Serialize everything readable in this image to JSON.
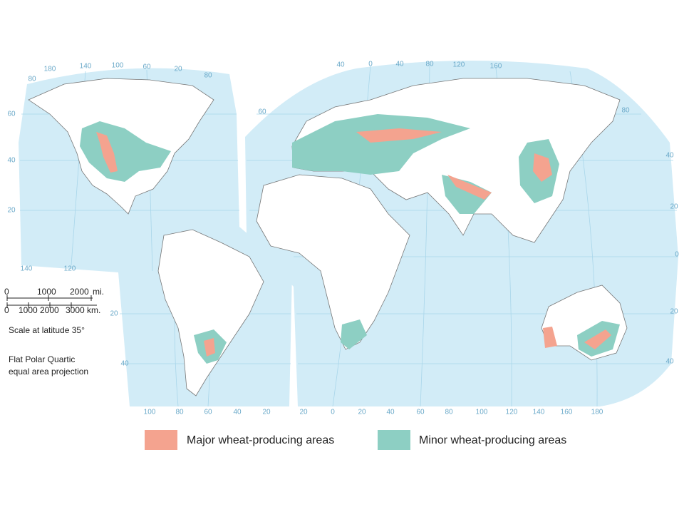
{
  "map": {
    "graticule": {
      "top_left": [
        "180",
        "140",
        "100",
        "60",
        "20",
        "80",
        "80"
      ],
      "left_lat": [
        "60",
        "40",
        "20"
      ],
      "lower_left": [
        "140",
        "120"
      ],
      "top_right": [
        "40",
        "0",
        "40",
        "80",
        "120",
        "160"
      ],
      "right_lat_left": [
        "60",
        "80"
      ],
      "right_lat": [
        "40",
        "20",
        "0",
        "20",
        "40"
      ],
      "south_america_lat": [
        "20",
        "40"
      ],
      "bottom": [
        "100",
        "80",
        "60",
        "40",
        "20",
        "20",
        "0",
        "20",
        "40",
        "60",
        "80",
        "100",
        "120",
        "140",
        "160",
        "180"
      ]
    },
    "scale": {
      "miles": [
        "0",
        "1000",
        "2000",
        "mi."
      ],
      "km": [
        "0",
        "1000",
        "2000",
        "3000",
        "km."
      ],
      "caption": "Scale at latitude 35°"
    },
    "projection": [
      "Flat Polar Quartic",
      "equal area projection"
    ],
    "legend": [
      {
        "label": "Major wheat-producing areas",
        "color": "#f4a38f"
      },
      {
        "label": "Minor wheat-producing areas",
        "color": "#8dcfc3"
      }
    ]
  }
}
